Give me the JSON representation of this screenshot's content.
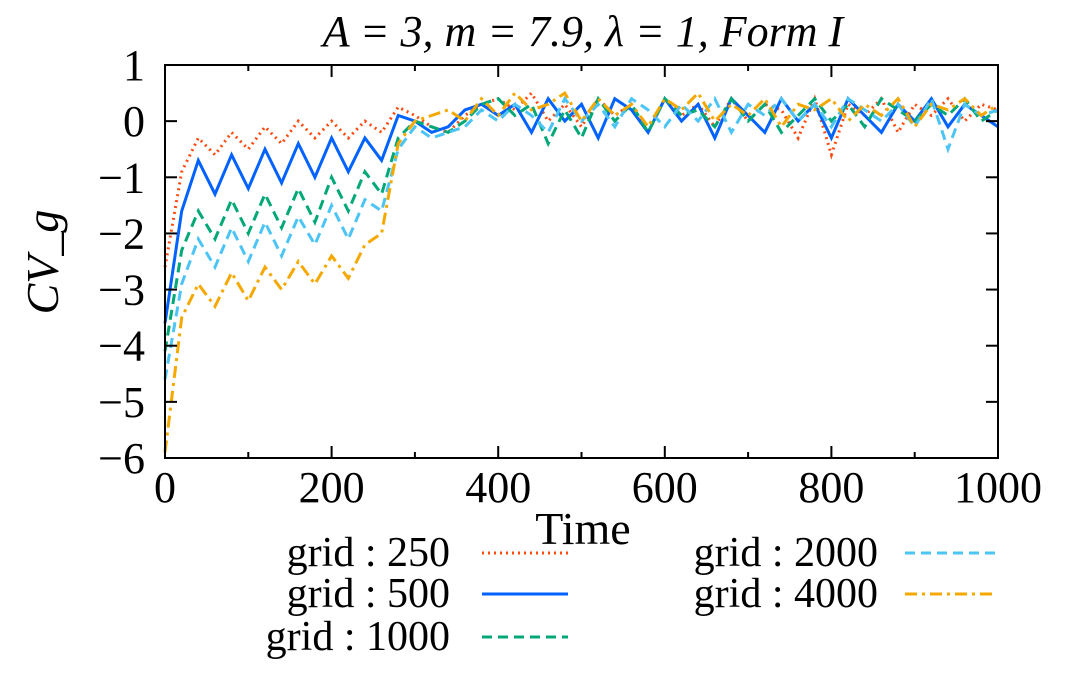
{
  "chart_data": {
    "type": "line",
    "title": "A = 3, m = 7.9, λ = 1, Form I",
    "xlabel": "Time",
    "ylabel": "CV_g",
    "xlim": [
      0,
      1000
    ],
    "ylim": [
      -6,
      1
    ],
    "xticks": [
      "0",
      "200",
      "400",
      "600",
      "800",
      "1000"
    ],
    "yticks": [
      "1",
      "0",
      "−1",
      "−2",
      "−3",
      "−4",
      "−5",
      "−6"
    ],
    "grid": false,
    "legend_position": "bottom",
    "x": [
      0,
      20,
      40,
      60,
      80,
      100,
      120,
      140,
      160,
      180,
      200,
      220,
      240,
      260,
      280,
      300,
      320,
      340,
      360,
      380,
      400,
      420,
      440,
      460,
      480,
      500,
      520,
      540,
      560,
      580,
      600,
      620,
      640,
      660,
      680,
      700,
      720,
      740,
      760,
      780,
      800,
      820,
      840,
      860,
      880,
      900,
      920,
      940,
      960,
      980,
      1000
    ],
    "series": [
      {
        "name": "grid : 250",
        "color": "#ff4a10",
        "style": "dotted",
        "values": [
          -2.6,
          -0.9,
          -0.3,
          -0.6,
          -0.2,
          -0.5,
          -0.1,
          -0.4,
          0,
          -0.3,
          0,
          -0.3,
          0,
          -0.2,
          0.25,
          0.1,
          -0.1,
          -0.2,
          0.1,
          0.3,
          0.4,
          0.2,
          0.5,
          0,
          0.3,
          -0.1,
          0.4,
          0.1,
          0.3,
          -0.2,
          0.4,
          0.1,
          0.3,
          -0.1,
          0.4,
          0,
          0.3,
          0.2,
          -0.3,
          0.4,
          -0.6,
          0.3,
          0.1,
          0.4,
          -0.2,
          0.3,
          0.1,
          0.4,
          0,
          0.3,
          0.2
        ]
      },
      {
        "name": "grid : 500",
        "color": "#0062ff",
        "style": "solid",
        "values": [
          -3.6,
          -1.6,
          -0.7,
          -1.3,
          -0.6,
          -1.2,
          -0.5,
          -1.1,
          -0.4,
          -1.0,
          -0.3,
          -0.9,
          -0.3,
          -0.7,
          0.1,
          0,
          -0.2,
          -0.1,
          0.2,
          0.3,
          0.1,
          0.3,
          -0.2,
          0.4,
          0,
          0.3,
          -0.3,
          0.4,
          0.2,
          -0.2,
          0.4,
          0,
          0.3,
          -0.3,
          0.4,
          0.1,
          -0.2,
          0.4,
          0,
          0.3,
          -0.3,
          0.4,
          0.1,
          -0.2,
          0.3,
          0,
          0.4,
          -0.1,
          0.3,
          0.1,
          -0.1
        ]
      },
      {
        "name": "grid : 1000",
        "color": "#00a878",
        "style": "dashed",
        "values": [
          -4.1,
          -2.3,
          -1.6,
          -2.1,
          -1.4,
          -2.0,
          -1.3,
          -1.9,
          -1.2,
          -1.8,
          -1.0,
          -1.6,
          -0.9,
          -1.3,
          -0.3,
          0,
          -0.1,
          -0.2,
          0,
          0.3,
          0.4,
          0.1,
          0.3,
          -0.4,
          0.2,
          -0.3,
          0.4,
          0,
          0.3,
          -0.2,
          0.4,
          0.1,
          0.2,
          -0.1,
          0.4,
          0,
          0.3,
          -0.2,
          0.1,
          0.4,
          0,
          0.3,
          -0.1,
          0.4,
          0.2,
          0,
          0.3,
          0.1,
          0.4,
          0,
          0.2
        ]
      },
      {
        "name": "grid : 2000",
        "color": "#4cc4f5",
        "style": "dashed",
        "values": [
          -4.6,
          -2.9,
          -2.1,
          -2.6,
          -1.9,
          -2.5,
          -1.8,
          -2.4,
          -1.7,
          -2.2,
          -1.5,
          -2.1,
          -1.4,
          -1.6,
          -0.5,
          -0.1,
          -0.3,
          -0.2,
          -0.1,
          0.2,
          0,
          0.3,
          0.1,
          -0.2,
          0.4,
          0,
          0.3,
          -0.1,
          0.4,
          0.2,
          -0.1,
          0.3,
          0,
          0.4,
          -0.2,
          0.3,
          0.1,
          0.4,
          0,
          0.3,
          -0.1,
          0.4,
          0.2,
          0,
          0.3,
          -0.1,
          0.4,
          -0.5,
          0.3,
          0.1,
          0.2
        ]
      },
      {
        "name": "grid : 4000",
        "color": "#f5a800",
        "style": "dashdot",
        "values": [
          -5.9,
          -3.5,
          -2.9,
          -3.3,
          -2.7,
          -3.2,
          -2.6,
          -3.0,
          -2.5,
          -2.9,
          -2.4,
          -2.8,
          -2.2,
          -2.0,
          -0.4,
          0,
          0.1,
          0.2,
          0,
          0.4,
          0.1,
          0.5,
          0.2,
          0.3,
          0.5,
          0,
          0.4,
          0.1,
          0.3,
          -0.1,
          0.4,
          0.2,
          0.5,
          0,
          0.3,
          0.1,
          0.4,
          -0.1,
          0.3,
          0.2,
          0.4,
          0,
          0.3,
          0.1,
          0.4,
          -0.1,
          0.3,
          0.2,
          0.4,
          0.1,
          0.3
        ]
      }
    ]
  }
}
